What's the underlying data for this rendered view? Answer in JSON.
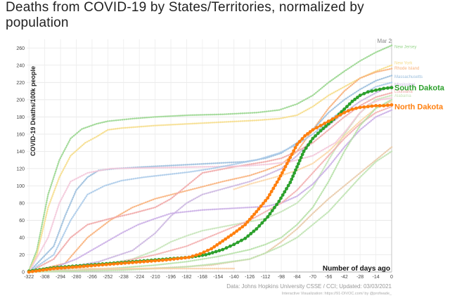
{
  "title": "Deaths from COVID-19 by States/Territories, normalized by population",
  "chart_data": {
    "type": "line",
    "xlabel": "Number of days ago",
    "ylabel": "COVID-19 Deaths/100k people",
    "date_label": "Mar 2",
    "source": "Data: Johns Hopkins University CSSE / CCI; Updated: 03/03/2021",
    "credit": "Interactive Visualization: https://91-DIVOC.com/ by @profwade_",
    "xlim": [
      -324,
      0
    ],
    "ylim": [
      0,
      270
    ],
    "xticks": [
      -322,
      -308,
      -294,
      -280,
      -266,
      -252,
      -238,
      -224,
      -210,
      -196,
      -182,
      -168,
      -154,
      -140,
      -126,
      -112,
      -98,
      -84,
      -70,
      -56,
      -42,
      -28,
      -14,
      0
    ],
    "yticks": [
      0,
      20,
      40,
      60,
      80,
      100,
      120,
      140,
      160,
      180,
      200,
      220,
      240,
      260
    ],
    "grid": true,
    "highlight_series": [
      {
        "name": "South Dakota",
        "color": "#2ca02c",
        "x": [
          -322,
          -300,
          -280,
          -260,
          -240,
          -220,
          -200,
          -180,
          -165,
          -150,
          -140,
          -130,
          -120,
          -110,
          -100,
          -90,
          -84,
          -78,
          -70,
          -63,
          -56,
          -49,
          -42,
          -35,
          -28,
          -21,
          -14,
          -7,
          0
        ],
        "y": [
          1,
          5,
          7,
          9,
          11,
          13,
          15,
          17,
          20,
          26,
          32,
          39,
          50,
          64,
          82,
          104,
          122,
          140,
          155,
          164,
          172,
          180,
          189,
          198,
          205,
          209,
          211,
          213,
          214
        ]
      },
      {
        "name": "North Dakota",
        "color": "#ff7f0e",
        "x": [
          -322,
          -300,
          -280,
          -260,
          -240,
          -220,
          -200,
          -180,
          -170,
          -160,
          -150,
          -140,
          -130,
          -120,
          -110,
          -100,
          -90,
          -84,
          -77,
          -70,
          -63,
          -56,
          -49,
          -42,
          -35,
          -28,
          -21,
          -14,
          -7,
          0
        ],
        "y": [
          0,
          4,
          6,
          8,
          10,
          12,
          14,
          17,
          21,
          27,
          36,
          45,
          55,
          70,
          86,
          108,
          133,
          148,
          158,
          165,
          170,
          175,
          180,
          185,
          189,
          191,
          192,
          193,
          193,
          194
        ]
      }
    ],
    "background_series": [
      {
        "name": "New Jersey",
        "color": "#98d68d",
        "x": [
          -322,
          -315,
          -305,
          -295,
          -285,
          -275,
          -262,
          -252,
          -230,
          -210,
          -180,
          -150,
          -120,
          -100,
          -84,
          -70,
          -56,
          -42,
          -28,
          -14,
          0
        ],
        "y": [
          2,
          25,
          90,
          130,
          155,
          166,
          172,
          175,
          178,
          180,
          182,
          183,
          185,
          188,
          195,
          205,
          220,
          233,
          245,
          255,
          263
        ]
      },
      {
        "name": "New York",
        "color": "#f5dc8a",
        "x": [
          -322,
          -315,
          -305,
          -295,
          -285,
          -272,
          -262,
          -252,
          -240,
          -210,
          -180,
          -150,
          -120,
          -100,
          -84,
          -70,
          -56,
          -42,
          -28,
          -14,
          0
        ],
        "y": [
          1,
          20,
          75,
          110,
          135,
          150,
          157,
          165,
          167,
          170,
          172,
          174,
          176,
          178,
          182,
          192,
          205,
          215,
          225,
          233,
          240
        ]
      },
      {
        "name": "Rhode Island",
        "color": "#f8b07a",
        "x": [
          -322,
          -290,
          -270,
          -250,
          -230,
          -210,
          -180,
          -150,
          -126,
          -112,
          -98,
          -84,
          -70,
          -56,
          -42,
          -28,
          -14,
          0
        ],
        "y": [
          0,
          10,
          40,
          60,
          75,
          85,
          95,
          105,
          112,
          118,
          125,
          140,
          165,
          190,
          210,
          225,
          232,
          236
        ]
      },
      {
        "name": "Massachusetts",
        "color": "#9bbedc",
        "x": [
          -322,
          -300,
          -290,
          -280,
          -270,
          -260,
          -245,
          -220,
          -190,
          -160,
          -130,
          -112,
          -98,
          -84,
          -70,
          -56,
          -42,
          -28,
          -14,
          0
        ],
        "y": [
          0,
          30,
          65,
          95,
          110,
          118,
          120,
          122,
          124,
          126,
          128,
          132,
          138,
          150,
          165,
          185,
          200,
          212,
          222,
          228
        ]
      },
      {
        "name": "Mississippi",
        "color": "#cbb6e0",
        "x": [
          -322,
          -290,
          -260,
          -230,
          -210,
          -196,
          -182,
          -168,
          -154,
          -140,
          -126,
          -112,
          -98,
          -84,
          -70,
          -56,
          -42,
          -28,
          -14,
          0
        ],
        "y": [
          0,
          5,
          12,
          25,
          45,
          65,
          80,
          90,
          95,
          100,
          105,
          112,
          120,
          135,
          155,
          170,
          185,
          198,
          208,
          216
        ]
      },
      {
        "name": "Louisiana",
        "color": "#f0a8a8",
        "x": [
          -322,
          -300,
          -285,
          -270,
          -250,
          -230,
          -210,
          -196,
          -182,
          -168,
          -140,
          -126,
          -112,
          -98,
          -84,
          -70,
          -56,
          -42,
          -28,
          -14,
          0
        ],
        "y": [
          0,
          15,
          40,
          55,
          62,
          68,
          75,
          85,
          100,
          115,
          122,
          125,
          128,
          132,
          140,
          150,
          165,
          180,
          193,
          203,
          208
        ]
      },
      {
        "name": "Alabama",
        "color": "#c6e4b8",
        "x": [
          -322,
          -290,
          -260,
          -230,
          -210,
          -196,
          -182,
          -168,
          -140,
          -112,
          -98,
          -84,
          -70,
          -56,
          -42,
          -28,
          -14,
          0
        ],
        "y": [
          0,
          3,
          8,
          15,
          25,
          35,
          42,
          48,
          55,
          62,
          70,
          80,
          98,
          130,
          160,
          185,
          200,
          205
        ]
      },
      {
        "name": "",
        "color": "#f3c7d9",
        "x": [
          -322,
          -305,
          -295,
          -285,
          -270,
          -250,
          -210,
          -170,
          -130,
          -110,
          -90,
          -70,
          -50,
          -40,
          -30,
          -20,
          -10,
          0
        ],
        "y": [
          0,
          40,
          80,
          105,
          115,
          120,
          121,
          122,
          123,
          125,
          128,
          135,
          150,
          165,
          182,
          195,
          200,
          202
        ]
      },
      {
        "name": "",
        "color": "#aac9e8",
        "x": [
          -322,
          -300,
          -285,
          -270,
          -255,
          -240,
          -220,
          -200,
          -180,
          -160,
          -140,
          -120,
          -100,
          -84,
          -70,
          -56,
          -42,
          -28,
          -14,
          0
        ],
        "y": [
          0,
          20,
          60,
          90,
          100,
          106,
          110,
          113,
          116,
          120,
          125,
          130,
          138,
          148,
          160,
          175,
          190,
          205,
          215,
          220
        ]
      },
      {
        "name": "",
        "color": "#c9aee6",
        "x": [
          -322,
          -300,
          -280,
          -260,
          -240,
          -225,
          -210,
          -196,
          -182,
          -168,
          -140,
          -112,
          -98,
          -84,
          -70,
          -56,
          -42,
          -28,
          -14,
          0
        ],
        "y": [
          0,
          5,
          15,
          30,
          45,
          55,
          62,
          68,
          70,
          72,
          74,
          76,
          80,
          88,
          102,
          122,
          145,
          165,
          180,
          188
        ]
      },
      {
        "name": "",
        "color": "#f3b0b0",
        "x": [
          -322,
          -280,
          -240,
          -210,
          -182,
          -154,
          -126,
          -112,
          -98,
          -84,
          -70,
          -56,
          -42,
          -28,
          -14,
          0
        ],
        "y": [
          0,
          5,
          12,
          20,
          30,
          45,
          60,
          70,
          80,
          95,
          115,
          135,
          155,
          172,
          185,
          192
        ]
      },
      {
        "name": "",
        "color": "#fbd7a8",
        "x": [
          -140,
          -126,
          -112,
          -98,
          -84,
          -70,
          -56,
          -42,
          -28,
          -14,
          0
        ],
        "y": [
          96,
          102,
          107,
          112,
          118,
          126,
          140,
          158,
          175,
          190,
          198
        ]
      },
      {
        "name": "",
        "color": "#b5e0a7",
        "x": [
          -322,
          -280,
          -240,
          -210,
          -182,
          -154,
          -126,
          -112,
          -98,
          -84,
          -70,
          -56,
          -42,
          -28,
          -14,
          0
        ],
        "y": [
          0,
          2,
          5,
          8,
          12,
          18,
          26,
          32,
          40,
          55,
          75,
          105,
          140,
          170,
          190,
          200
        ]
      },
      {
        "name": "",
        "color": "#e8c9a8",
        "x": [
          -322,
          -280,
          -240,
          -200,
          -160,
          -126,
          -112,
          -98,
          -84,
          -70,
          -56,
          -42,
          -28,
          -14,
          0
        ],
        "y": [
          0,
          2,
          3,
          5,
          8,
          15,
          22,
          35,
          50,
          68,
          85,
          100,
          115,
          130,
          145
        ]
      },
      {
        "name": "",
        "color": "#bfe3b1",
        "x": [
          -322,
          -280,
          -240,
          -210,
          -182,
          -154,
          -126,
          -112,
          -98,
          -84,
          -70,
          -56,
          -42,
          -28,
          -14,
          0
        ],
        "y": [
          0,
          1,
          2,
          4,
          6,
          10,
          15,
          22,
          30,
          40,
          55,
          70,
          90,
          110,
          128,
          140
        ]
      },
      {
        "name": "",
        "color": "#f7cfa8",
        "x": [
          -322,
          -290,
          -260,
          -230,
          -200,
          -170,
          -150,
          -140
        ],
        "y": [
          0,
          4,
          4,
          4,
          4,
          4,
          4,
          4
        ]
      }
    ]
  }
}
